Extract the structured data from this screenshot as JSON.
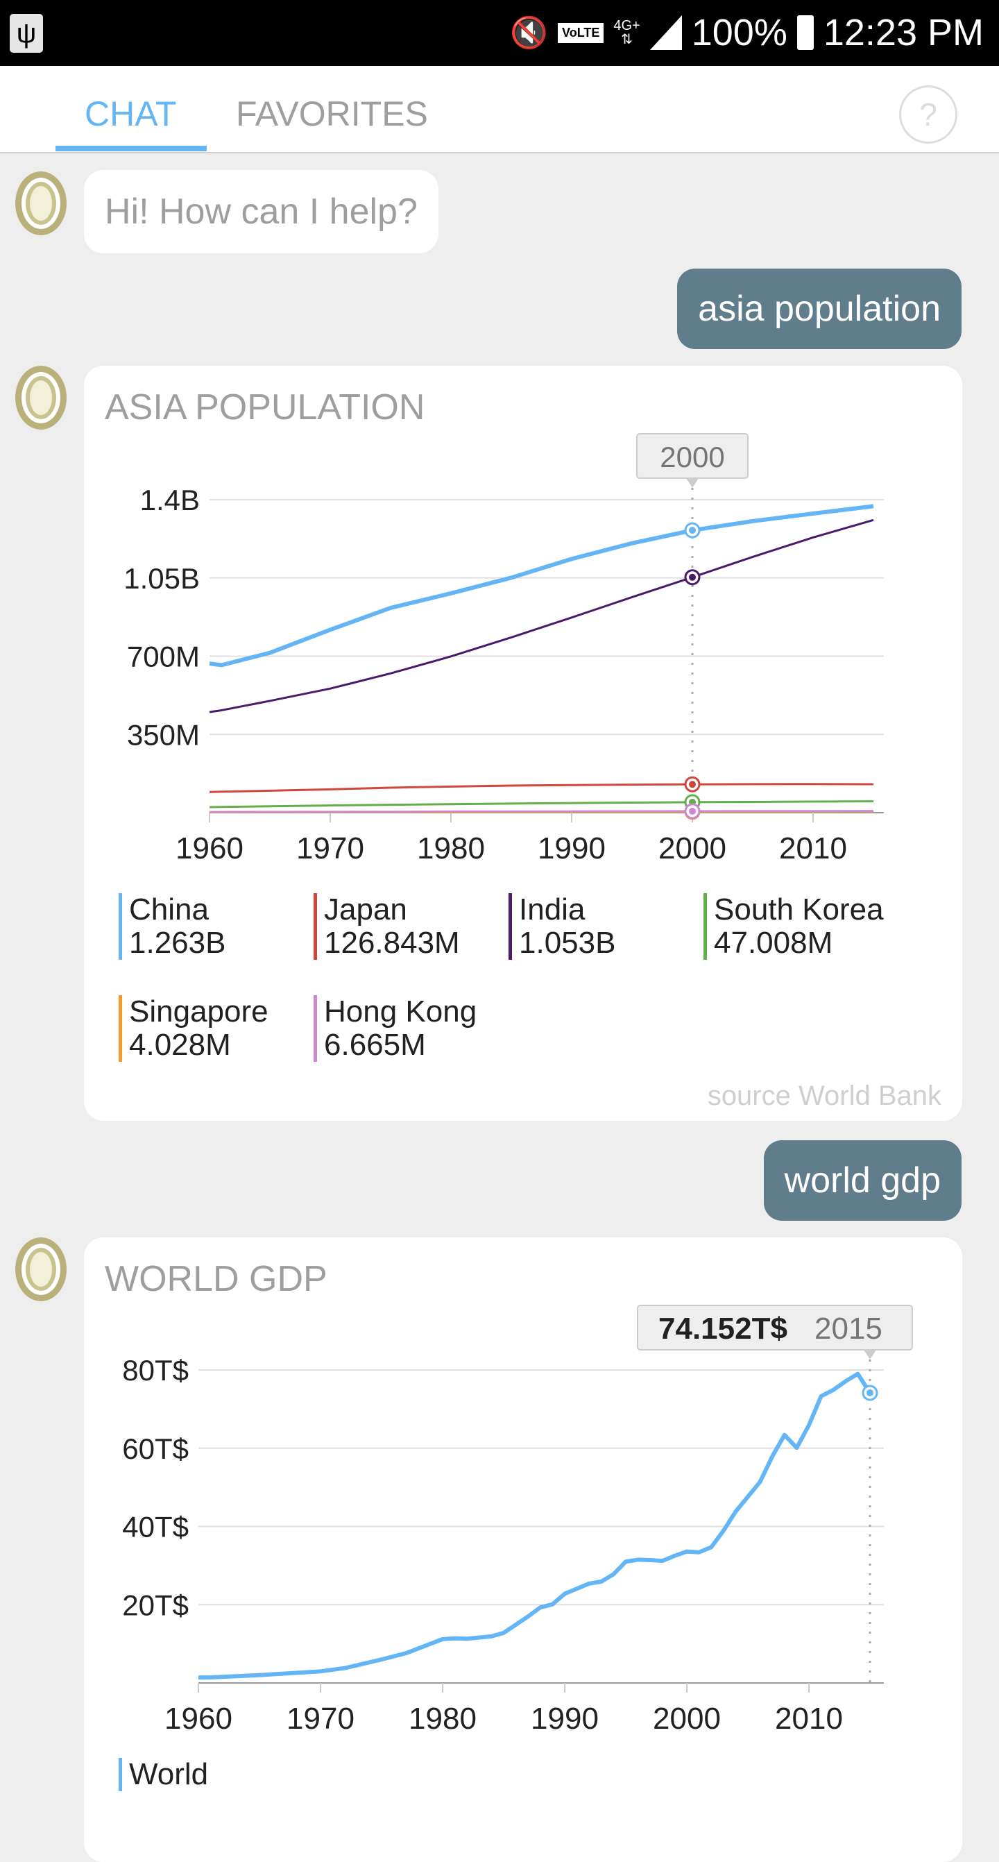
{
  "status_bar": {
    "battery": "100%",
    "time": "12:23 PM",
    "network": "4G+",
    "volte": "VoLTE",
    "icons": [
      "usb-icon",
      "mute-vibrate-icon",
      "volte-icon",
      "signal-icon",
      "battery-icon"
    ]
  },
  "header": {
    "tabs": [
      {
        "label": "CHAT",
        "active": true
      },
      {
        "label": "FAVORITES",
        "active": false
      }
    ],
    "help_label": "?"
  },
  "colors": {
    "accent": "#64b5f6",
    "user_bubble": "#607d8b",
    "background": "#eeeeee"
  },
  "messages": {
    "greeting": "Hi! How can I help?",
    "user1": "asia population",
    "user2": "world gdp"
  },
  "chart_data": [
    {
      "type": "line",
      "title": "ASIA POPULATION",
      "xlabel": "",
      "ylabel": "",
      "ylim": [
        0,
        1400000000
      ],
      "xlim": [
        1960,
        2015
      ],
      "yticks": [
        {
          "v": 350000000,
          "label": "350M"
        },
        {
          "v": 700000000,
          "label": "700M"
        },
        {
          "v": 1050000000,
          "label": "1.05B"
        },
        {
          "v": 1400000000,
          "label": "1.4B"
        }
      ],
      "xticks": [
        "1960",
        "1970",
        "1980",
        "1990",
        "2000",
        "2010"
      ],
      "x": [
        1960,
        1961,
        1965,
        1970,
        1975,
        1980,
        1985,
        1990,
        1995,
        2000,
        2005,
        2010,
        2015
      ],
      "series": [
        {
          "name": "China",
          "value": "1.263B",
          "color": "#64b5f6",
          "width": 6,
          "values": [
            667,
            660,
            715,
            818,
            916,
            981,
            1051,
            1135,
            1205,
            1263,
            1304,
            1338,
            1371
          ]
        },
        {
          "name": "Japan",
          "value": "126.843M",
          "color": "#d0463b",
          "width": 3,
          "values": [
            92.5,
            94,
            98.3,
            104.3,
            111.9,
            116.8,
            121,
            123.5,
            125.4,
            126.8,
            127.8,
            128.1,
            127.1
          ]
        },
        {
          "name": "India",
          "value": "1.053B",
          "color": "#4a1a6b",
          "width": 3,
          "values": [
            450,
            458,
            500,
            555,
            623,
            699,
            784,
            873,
            964,
            1053,
            1144,
            1231,
            1309
          ]
        },
        {
          "name": "South Korea",
          "value": "47.008M",
          "color": "#5fb04a",
          "width": 3,
          "values": [
            25,
            25.8,
            28.7,
            32.2,
            35.3,
            38.1,
            40.8,
            42.9,
            45.1,
            47.0,
            48.2,
            49.6,
            51.0
          ]
        },
        {
          "name": "Singapore",
          "value": "4.028M",
          "color": "#f39a2b",
          "width": 3,
          "values": [
            1.6,
            1.7,
            1.9,
            2.1,
            2.3,
            2.4,
            2.7,
            3.0,
            3.5,
            4.0,
            4.3,
            5.1,
            5.5
          ]
        },
        {
          "name": "Hong Kong",
          "value": "6.665M",
          "color": "#cc88d0",
          "width": 3,
          "values": [
            3.1,
            3.2,
            3.6,
            3.96,
            4.46,
            5.06,
            5.46,
            5.7,
            6.16,
            6.67,
            6.81,
            7.02,
            7.29
          ]
        }
      ],
      "value_unit": "millions",
      "highlight": {
        "x": 2000,
        "label": "2000"
      },
      "source": "source World Bank",
      "grid": true,
      "legend": "bottom"
    },
    {
      "type": "line",
      "title": "WORLD GDP",
      "ylim": [
        0,
        80
      ],
      "xlim": [
        1960,
        2015
      ],
      "yticks": [
        {
          "v": 20,
          "label": "20T$"
        },
        {
          "v": 40,
          "label": "40T$"
        },
        {
          "v": 60,
          "label": "60T$"
        },
        {
          "v": 80,
          "label": "80T$"
        }
      ],
      "xticks": [
        "1960",
        "1970",
        "1980",
        "1990",
        "2000",
        "2010"
      ],
      "x": [
        1960,
        1961,
        1965,
        1970,
        1972,
        1975,
        1977,
        1980,
        1981,
        1982,
        1984,
        1985,
        1987,
        1988,
        1989,
        1990,
        1992,
        1993,
        1994,
        1995,
        1996,
        1997,
        1998,
        1999,
        2000,
        2001,
        2002,
        2003,
        2004,
        2006,
        2007,
        2008,
        2009,
        2010,
        2011,
        2012,
        2013,
        2014,
        2015
      ],
      "series": [
        {
          "name": "World",
          "color": "#64b5f6",
          "values": [
            1.37,
            1.42,
            2.0,
            2.96,
            3.8,
            6.0,
            7.6,
            11.2,
            11.4,
            11.3,
            11.9,
            12.8,
            17.0,
            19.3,
            20.1,
            22.8,
            25.4,
            25.9,
            27.8,
            31.0,
            31.5,
            31.4,
            31.2,
            32.5,
            33.6,
            33.4,
            34.7,
            38.9,
            43.8,
            51.4,
            57.9,
            63.4,
            60.1,
            65.9,
            73.3,
            74.9,
            77.1,
            79.0,
            74.152
          ]
        }
      ],
      "highlight": {
        "x": 2015,
        "value_label": "74.152T$",
        "year_label": "2015"
      },
      "grid": true,
      "legend": "bottom"
    }
  ]
}
